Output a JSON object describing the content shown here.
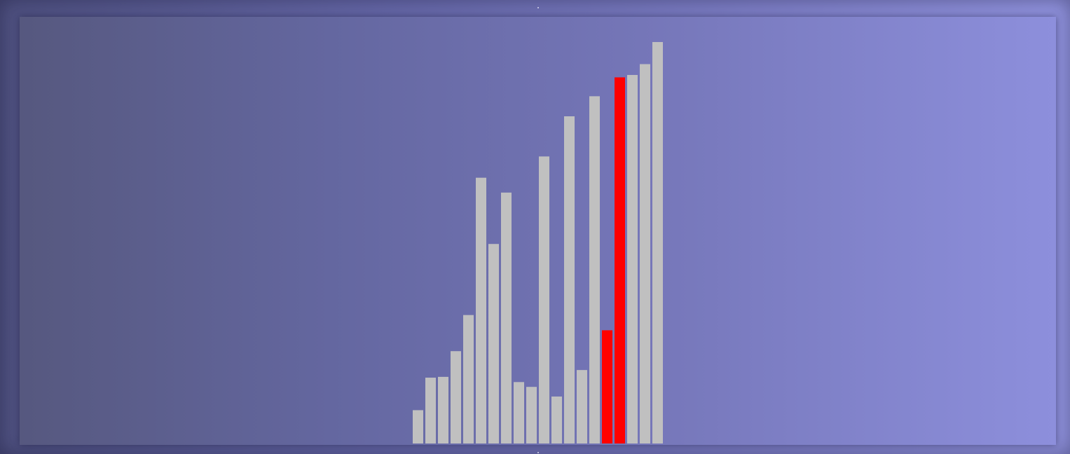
{
  "chart_data": {
    "type": "bar",
    "title": "",
    "xlabel": "",
    "ylabel": "",
    "grid": false,
    "legend": "none",
    "ylim": [
      0,
      100
    ],
    "values": [
      8.3,
      16.4,
      16.6,
      23,
      32,
      66.2,
      49.7,
      62.5,
      15.3,
      14.1,
      71.5,
      11.7,
      81.5,
      18.3,
      86.5,
      28.2,
      91.2,
      91.8,
      94.5,
      100
    ],
    "highlighted_indices": [
      15,
      16
    ],
    "colors": {
      "bar": "#c0c0c0",
      "highlight": "#ff0000"
    }
  }
}
